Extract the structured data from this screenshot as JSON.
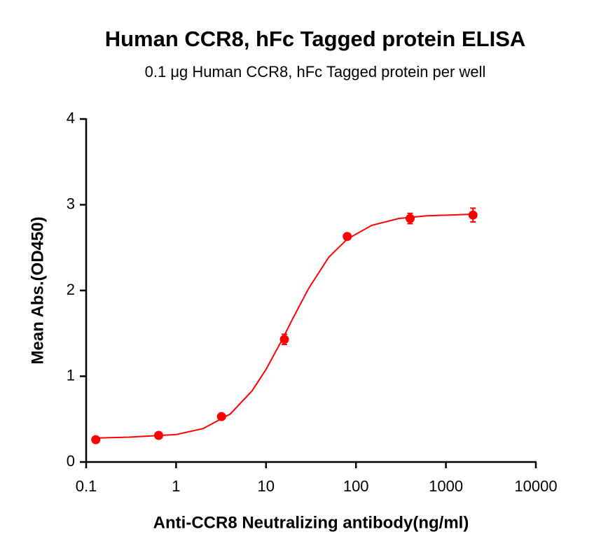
{
  "chart_data": {
    "type": "scatter",
    "title": "Human CCR8, hFc Tagged protein ELISA",
    "subtitle": "0.1 μg Human CCR8, hFc Tagged protein per well",
    "x_label": "Anti-CCR8 Neutralizing antibody(ng/ml)",
    "y_label": "Mean Abs.(OD450)",
    "x_scale": "log",
    "xlim": [
      0.1,
      10000
    ],
    "xticks": [
      0.1,
      1,
      10,
      100,
      1000,
      10000
    ],
    "ylim": [
      0,
      4
    ],
    "yticks": [
      0,
      1,
      2,
      3,
      4
    ],
    "color": "#ff0000",
    "x": [
      0.128,
      0.64,
      3.2,
      16,
      80,
      400,
      2000
    ],
    "values": [
      0.26,
      0.31,
      0.53,
      1.43,
      2.63,
      2.84,
      2.88
    ],
    "errors": [
      0.02,
      0.02,
      0.02,
      0.06,
      0.03,
      0.06,
      0.08
    ],
    "curve": {
      "x": [
        0.128,
        0.3,
        1,
        2,
        4,
        7,
        10,
        15,
        20,
        30,
        50,
        80,
        150,
        300,
        600,
        2000
      ],
      "values": [
        0.28,
        0.29,
        0.32,
        0.39,
        0.56,
        0.83,
        1.08,
        1.42,
        1.68,
        2.03,
        2.39,
        2.6,
        2.76,
        2.84,
        2.87,
        2.89
      ]
    }
  }
}
